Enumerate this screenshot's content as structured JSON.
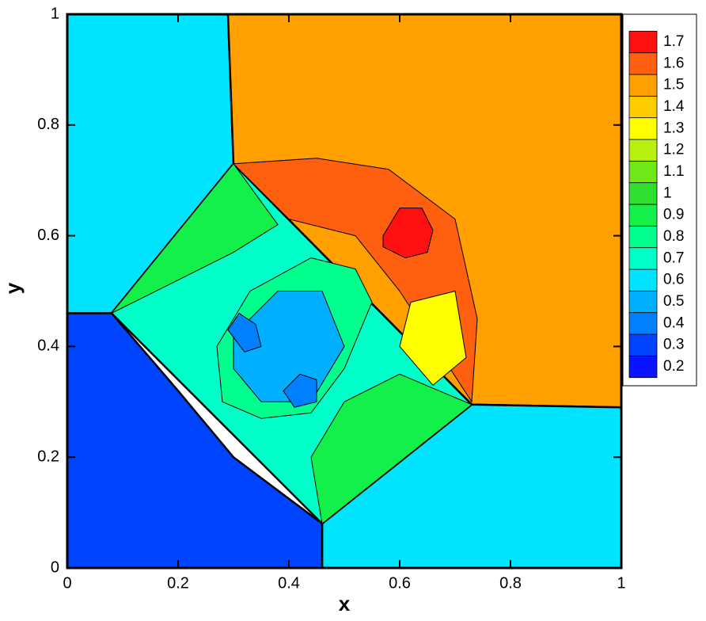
{
  "chart_data": {
    "type": "contour",
    "x_label": "x",
    "y_label": "y",
    "xlim": [
      0,
      1
    ],
    "ylim": [
      0,
      1
    ],
    "xticks": [
      0,
      0.2,
      0.4,
      0.6,
      0.8,
      1
    ],
    "yticks": [
      0,
      0.2,
      0.4,
      0.6,
      0.8,
      1
    ],
    "colorbar": {
      "ticks": [
        0.2,
        0.3,
        0.4,
        0.5,
        0.6,
        0.7,
        0.8,
        0.9,
        1,
        1.1,
        1.2,
        1.3,
        1.4,
        1.5,
        1.6,
        1.7
      ],
      "colors": [
        "#0a14ff",
        "#0044ff",
        "#0080ff",
        "#00b0ff",
        "#00e4ff",
        "#00ffc8",
        "#00ff8c",
        "#14f04a",
        "#30e030",
        "#70e818",
        "#b8f010",
        "#ffff00",
        "#ffcc00",
        "#ffa000",
        "#ff6010",
        "#ff1010"
      ]
    },
    "regions": [
      {
        "value": 0.6,
        "x": [
          0,
          0.29,
          0.3,
          0.08,
          0
        ],
        "y": [
          1,
          1,
          0.73,
          0.46,
          0.46
        ]
      },
      {
        "value": 1.5,
        "x": [
          0.29,
          1,
          1,
          0.73,
          0.3
        ],
        "y": [
          1,
          1,
          0.29,
          0.295,
          0.73
        ]
      },
      {
        "value": 0.6,
        "x": [
          1,
          0.73,
          0.46,
          0.46,
          1
        ],
        "y": [
          0.29,
          0.295,
          0.08,
          0,
          0
        ]
      },
      {
        "value": 0.3,
        "x": [
          0,
          0.08,
          0.2,
          0.3,
          0.46,
          0.46,
          0
        ],
        "y": [
          0.46,
          0.46,
          0.32,
          0.2,
          0.08,
          0,
          0
        ]
      },
      {
        "value": 0.7,
        "x": [
          0.08,
          0.3,
          0.73,
          0.46
        ],
        "y": [
          0.46,
          0.73,
          0.295,
          0.08
        ]
      },
      {
        "value": 0.9,
        "x": [
          0.08,
          0.3,
          0.38,
          0.3,
          0.2
        ],
        "y": [
          0.46,
          0.73,
          0.62,
          0.57,
          0.52
        ]
      },
      {
        "value": 0.9,
        "x": [
          0.46,
          0.73,
          0.6,
          0.5,
          0.44
        ],
        "y": [
          0.08,
          0.295,
          0.35,
          0.3,
          0.2
        ]
      },
      {
        "value": 1.6,
        "x": [
          0.3,
          0.45,
          0.58,
          0.7,
          0.74,
          0.73,
          0.6,
          0.52,
          0.4
        ],
        "y": [
          0.73,
          0.74,
          0.72,
          0.63,
          0.45,
          0.3,
          0.5,
          0.6,
          0.63
        ]
      },
      {
        "value": 1.3,
        "x": [
          0.62,
          0.7,
          0.72,
          0.66,
          0.6
        ],
        "y": [
          0.48,
          0.5,
          0.38,
          0.33,
          0.4
        ]
      },
      {
        "value": 1.7,
        "x": [
          0.57,
          0.6,
          0.64,
          0.66,
          0.65,
          0.61,
          0.57
        ],
        "y": [
          0.6,
          0.65,
          0.65,
          0.61,
          0.57,
          0.56,
          0.58
        ]
      },
      {
        "value": 0.8,
        "x": [
          0.27,
          0.33,
          0.44,
          0.52,
          0.55,
          0.5,
          0.44,
          0.35,
          0.28
        ],
        "y": [
          0.4,
          0.5,
          0.56,
          0.54,
          0.48,
          0.36,
          0.28,
          0.27,
          0.3
        ]
      },
      {
        "value": 0.5,
        "x": [
          0.3,
          0.38,
          0.46,
          0.5,
          0.44,
          0.35,
          0.3
        ],
        "y": [
          0.42,
          0.5,
          0.5,
          0.4,
          0.3,
          0.3,
          0.36
        ]
      },
      {
        "value": 0.4,
        "x": [
          0.29,
          0.31,
          0.34,
          0.35,
          0.32
        ],
        "y": [
          0.43,
          0.46,
          0.44,
          0.4,
          0.39
        ]
      },
      {
        "value": 0.4,
        "x": [
          0.39,
          0.42,
          0.45,
          0.45,
          0.41
        ],
        "y": [
          0.32,
          0.35,
          0.34,
          0.3,
          0.29
        ]
      }
    ]
  }
}
